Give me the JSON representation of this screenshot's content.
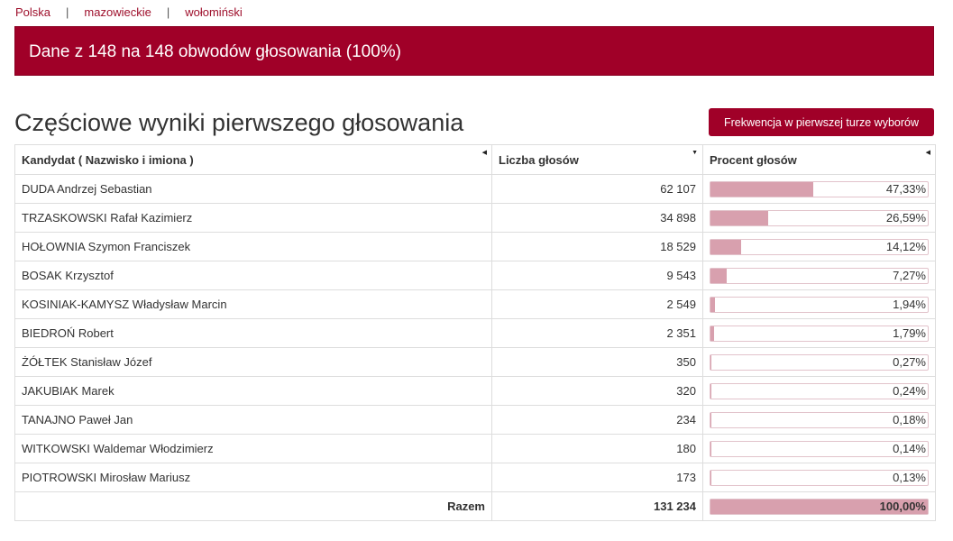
{
  "breadcrumb": {
    "items": [
      "Polska",
      "mazowieckie",
      "wołomiński"
    ],
    "separator": "|"
  },
  "banner": {
    "text": "Dane z 148 na 148 obwodów głosowania (100%)"
  },
  "section": {
    "title": "Częściowe wyniki pierwszego głosowania",
    "turnout_button": "Frekwencja w pierwszej turze wyborów"
  },
  "table": {
    "headers": {
      "candidate": "Kandydat ( Nazwisko i imiona )",
      "votes": "Liczba głosów",
      "percent": "Procent głosów"
    },
    "rows": [
      {
        "candidate": "DUDA Andrzej Sebastian",
        "votes": "62 107",
        "percent": "47,33%",
        "fraction": 0.4733
      },
      {
        "candidate": "TRZASKOWSKI Rafał Kazimierz",
        "votes": "34 898",
        "percent": "26,59%",
        "fraction": 0.2659
      },
      {
        "candidate": "HOŁOWNIA Szymon Franciszek",
        "votes": "18 529",
        "percent": "14,12%",
        "fraction": 0.1412
      },
      {
        "candidate": "BOSAK Krzysztof",
        "votes": "9 543",
        "percent": "7,27%",
        "fraction": 0.0727
      },
      {
        "candidate": "KOSINIAK-KAMYSZ Władysław Marcin",
        "votes": "2 549",
        "percent": "1,94%",
        "fraction": 0.0194
      },
      {
        "candidate": "BIEDROŃ Robert",
        "votes": "2 351",
        "percent": "1,79%",
        "fraction": 0.0179
      },
      {
        "candidate": "ŻÓŁTEK Stanisław Józef",
        "votes": "350",
        "percent": "0,27%",
        "fraction": 0.0027
      },
      {
        "candidate": "JAKUBIAK Marek",
        "votes": "320",
        "percent": "0,24%",
        "fraction": 0.0024
      },
      {
        "candidate": "TANAJNO Paweł Jan",
        "votes": "234",
        "percent": "0,18%",
        "fraction": 0.0018
      },
      {
        "candidate": "WITKOWSKI Waldemar Włodzimierz",
        "votes": "180",
        "percent": "0,14%",
        "fraction": 0.0014
      },
      {
        "candidate": "PIOTROWSKI Mirosław Mariusz",
        "votes": "173",
        "percent": "0,13%",
        "fraction": 0.0013
      }
    ],
    "total": {
      "label": "Razem",
      "votes": "131 234",
      "percent": "100,00%",
      "fraction": 1.0
    }
  },
  "colors": {
    "accent": "#a00028",
    "bar_fill": "#d8a0ae",
    "link": "#9e0f2b"
  },
  "icons": {
    "sort_candidate": "sort-icon",
    "sort_votes": "sort-desc-icon",
    "sort_percent": "sort-icon"
  }
}
